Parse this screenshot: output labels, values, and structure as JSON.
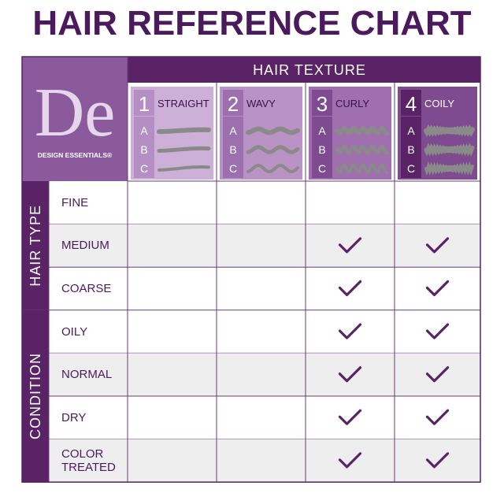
{
  "title": "HAIR REFERENCE CHART",
  "header": "HAIR TEXTURE",
  "logo": {
    "monogram": "De",
    "brand": "DESIGN ESSENTIALS®"
  },
  "levels": [
    "A",
    "B",
    "C"
  ],
  "columns": [
    {
      "number": "1",
      "name": "STRAIGHT"
    },
    {
      "number": "2",
      "name": "WAVY"
    },
    {
      "number": "3",
      "name": "CURLY"
    },
    {
      "number": "4",
      "name": "COILY"
    }
  ],
  "groups": [
    {
      "label": "HAIR TYPE",
      "rows": [
        {
          "label": "FINE",
          "checks": [
            false,
            false,
            false,
            false
          ]
        },
        {
          "label": "MEDIUM",
          "checks": [
            false,
            false,
            true,
            true
          ]
        },
        {
          "label": "COARSE",
          "checks": [
            false,
            false,
            true,
            true
          ]
        }
      ]
    },
    {
      "label": "CONDITION",
      "rows": [
        {
          "label": "OILY",
          "checks": [
            false,
            false,
            true,
            true
          ]
        },
        {
          "label": "NORMAL",
          "checks": [
            false,
            false,
            true,
            true
          ]
        },
        {
          "label": "DRY",
          "checks": [
            false,
            false,
            true,
            true
          ]
        },
        {
          "label": "COLOR TREATED",
          "checks": [
            false,
            false,
            true,
            true
          ]
        }
      ]
    }
  ]
}
